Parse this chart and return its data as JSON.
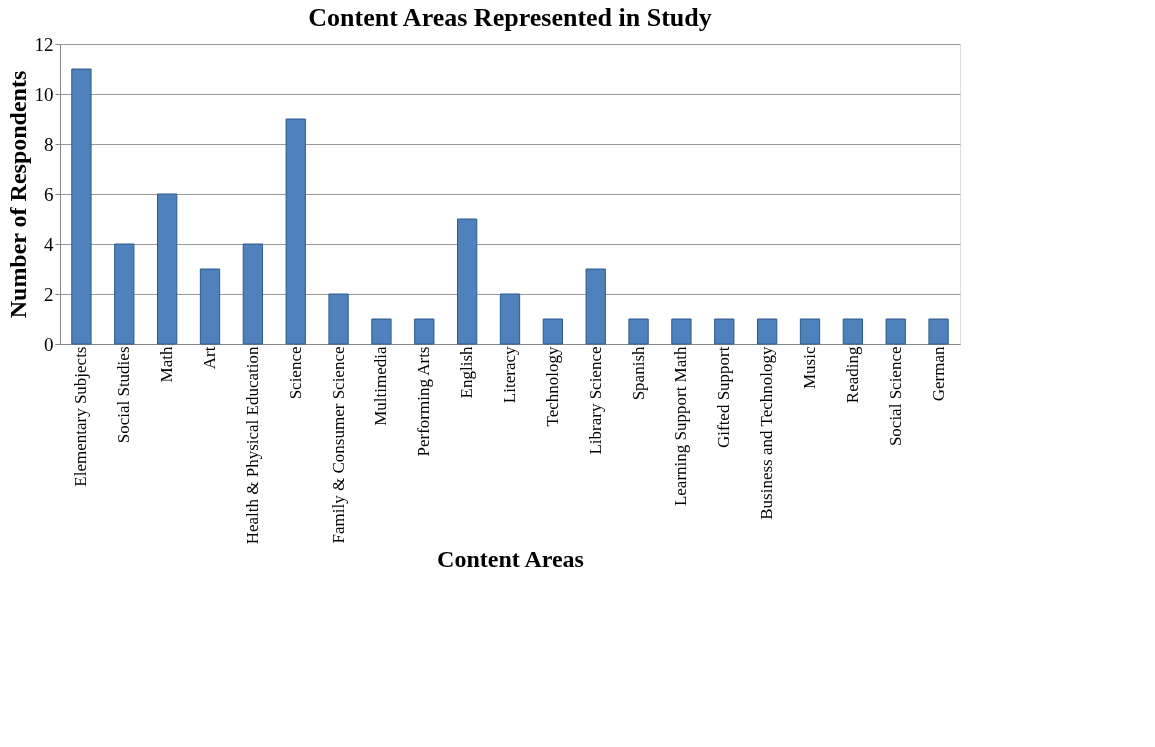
{
  "chart_data": {
    "type": "bar",
    "title": "Content Areas Represented in Study",
    "xlabel": "Content Areas",
    "ylabel": "Number of Respondents",
    "categories": [
      "Elementary Subjects",
      "Social Studies",
      "Math",
      "Art",
      "Health & Physical Education",
      "Science",
      "Family & Consumer Science",
      "Multimedia",
      "Performing Arts",
      "English",
      "Literacy",
      "Technology",
      "Library Science",
      "Spanish",
      "Learning Support Math",
      "Gifted Support",
      "Business and Technology",
      "Music",
      "Reading",
      "Social Science",
      "German"
    ],
    "values": [
      11,
      4,
      6,
      3,
      4,
      9,
      2,
      1,
      1,
      5,
      2,
      1,
      3,
      1,
      1,
      1,
      1,
      1,
      1,
      1,
      1
    ],
    "color": "#4f81bd",
    "ylim": [
      0,
      12
    ],
    "yticks": [
      0,
      2,
      4,
      6,
      8,
      10,
      12
    ],
    "grid": "y"
  }
}
